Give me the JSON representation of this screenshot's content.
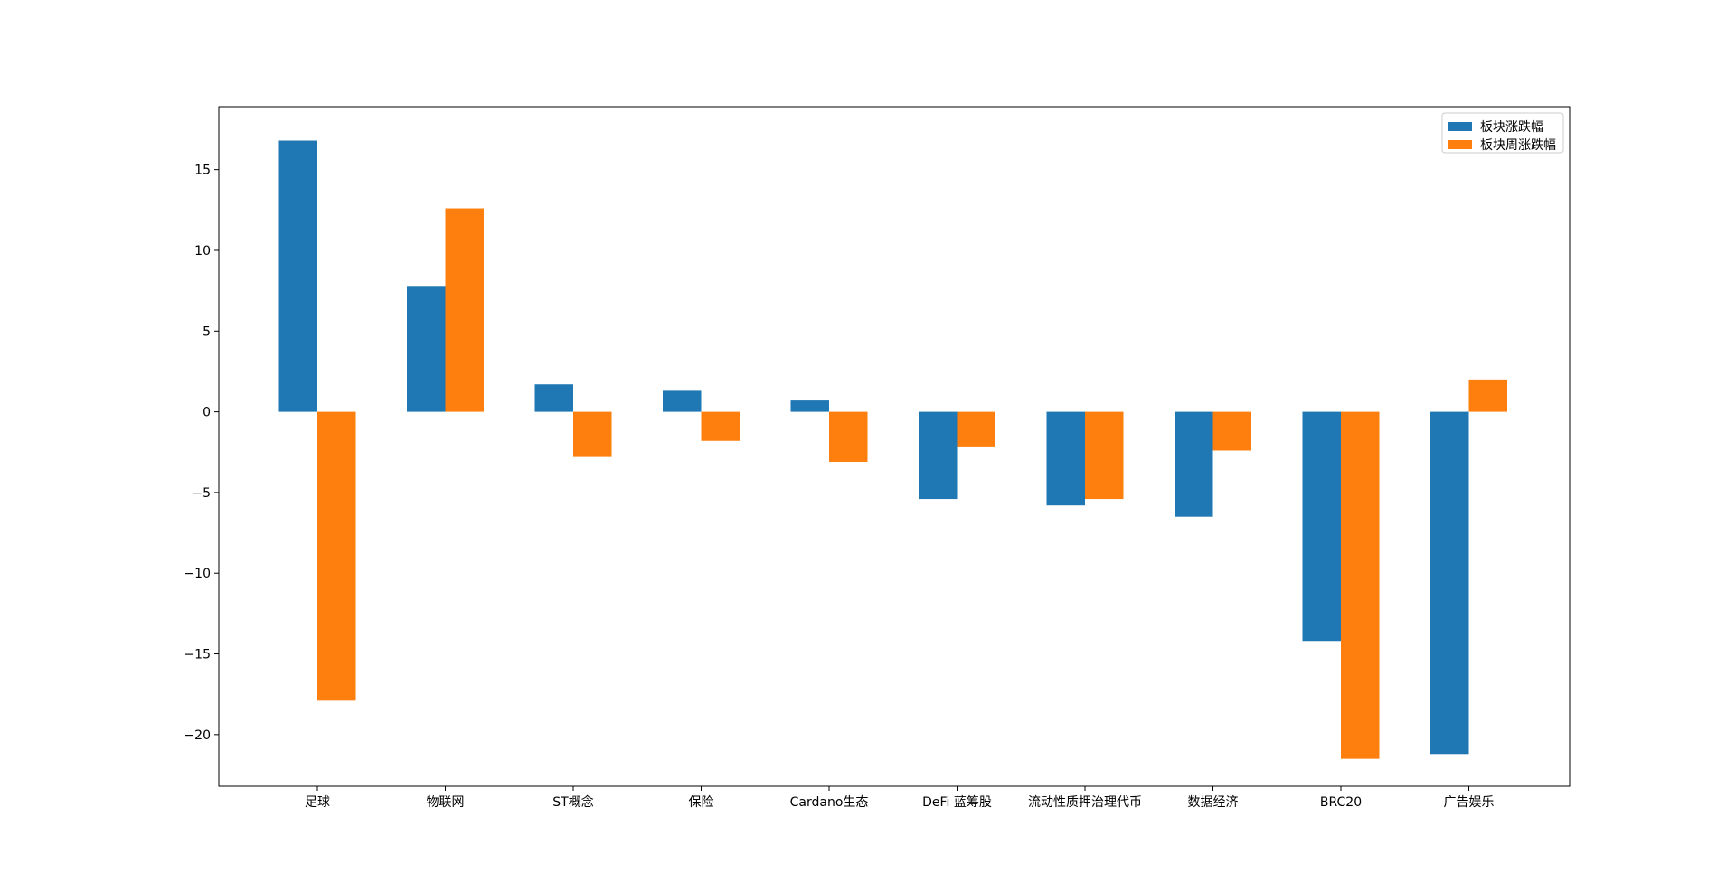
{
  "chart_data": {
    "type": "bar",
    "categories": [
      "足球",
      "物联网",
      "ST概念",
      "保险",
      "Cardano生态",
      "DeFi 蓝筹股",
      "流动性质押治理代币",
      "数据经济",
      "BRC20",
      "广告娱乐"
    ],
    "series": [
      {
        "name": "板块涨跌幅",
        "color": "#1f77b4",
        "values": [
          16.8,
          7.8,
          1.7,
          1.3,
          0.7,
          -5.4,
          -5.8,
          -6.5,
          -14.2,
          -21.2
        ]
      },
      {
        "name": "板块周涨跌幅",
        "color": "#ff7f0e",
        "values": [
          -17.9,
          12.6,
          -2.8,
          -1.8,
          -3.1,
          -2.2,
          -5.4,
          -2.4,
          -21.5,
          2.0
        ]
      }
    ],
    "ylim": [
      -23.2,
      18.9
    ],
    "yticks": [
      15,
      10,
      5,
      0,
      -5,
      -10,
      -15,
      -20
    ],
    "ytick_labels": [
      "15",
      "10",
      "5",
      "0",
      "−5",
      "−10",
      "−15",
      "−20"
    ],
    "legend_position": "top-right",
    "grid": false,
    "title": "",
    "xlabel": "",
    "ylabel": ""
  }
}
